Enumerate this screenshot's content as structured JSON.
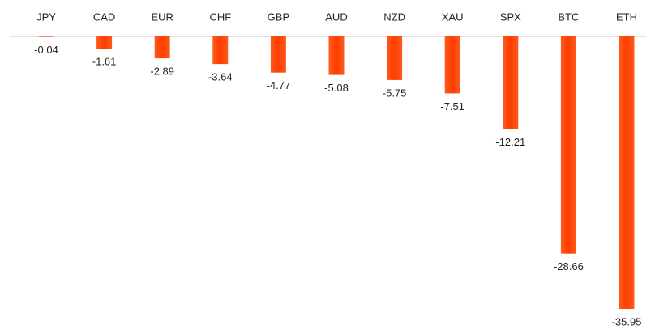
{
  "chart_data": {
    "type": "bar",
    "categories": [
      "JPY",
      "CAD",
      "EUR",
      "CHF",
      "GBP",
      "AUD",
      "NZD",
      "XAU",
      "SPX",
      "BTC",
      "ETH"
    ],
    "values": [
      -0.04,
      -1.61,
      -2.89,
      -3.64,
      -4.77,
      -5.08,
      -5.75,
      -7.51,
      -12.21,
      -28.66,
      -35.95
    ],
    "color": "#ff4500"
  }
}
